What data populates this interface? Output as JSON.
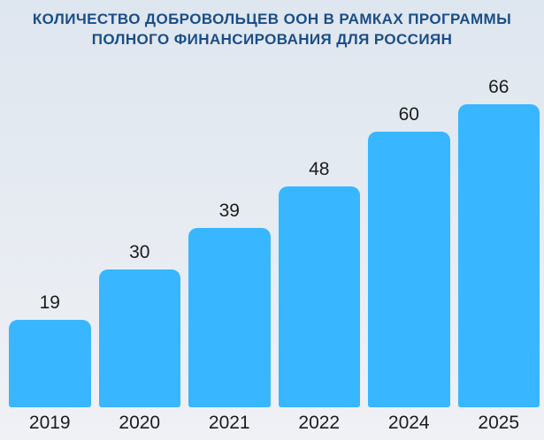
{
  "title": {
    "line1": "КОЛИЧЕСТВО ДОБРОВОЛЬЦЕВ ООН В РАМКАХ ПРОГРАММЫ",
    "line2": "ПОЛНОГО ФИНАНСИРОВАНИЯ ДЛЯ РОССИЯН"
  },
  "colors": {
    "background_top": "#dee6ef",
    "background_bottom": "#eff1f5",
    "bar": "#38b6ff",
    "title_text": "#1a4e87",
    "label_text": "#1c1c1c"
  },
  "chart_data": {
    "type": "bar",
    "title": "КОЛИЧЕСТВО ДОБРОВОЛЬЦЕВ ООН В РАМКАХ ПРОГРАММЫ ПОЛНОГО ФИНАНСИРОВАНИЯ ДЛЯ РОССИЯН",
    "categories": [
      "2019",
      "2020",
      "2021",
      "2022",
      "2024",
      "2025"
    ],
    "values": [
      19,
      30,
      39,
      48,
      60,
      66
    ],
    "xlabel": "",
    "ylabel": "",
    "ylim": [
      0,
      70
    ],
    "grid": false,
    "legend": false,
    "data_labels": true,
    "bar_color": "#38b6ff"
  }
}
